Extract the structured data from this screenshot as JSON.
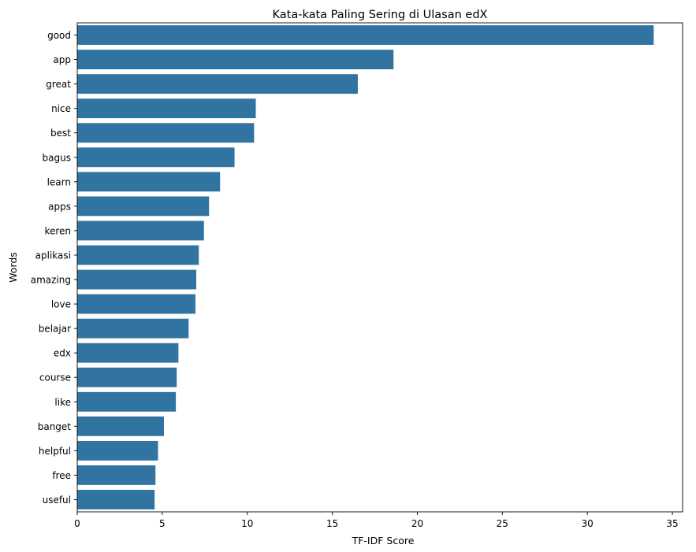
{
  "chart_data": {
    "type": "bar",
    "orientation": "horizontal",
    "title": "Kata-kata Paling Sering di Ulasan edX",
    "xlabel": "TF-IDF Score",
    "ylabel": "Words",
    "categories": [
      "good",
      "app",
      "great",
      "nice",
      "best",
      "bagus",
      "learn",
      "apps",
      "keren",
      "aplikasi",
      "amazing",
      "love",
      "belajar",
      "edx",
      "course",
      "like",
      "banget",
      "helpful",
      "free",
      "useful"
    ],
    "values": [
      33.9,
      18.6,
      16.5,
      10.5,
      10.4,
      9.25,
      8.4,
      7.75,
      7.45,
      7.15,
      7.0,
      6.95,
      6.55,
      5.95,
      5.85,
      5.8,
      5.1,
      4.75,
      4.6,
      4.55
    ],
    "xlim": [
      0,
      35.6
    ],
    "xticks": [
      0,
      5,
      10,
      15,
      20,
      25,
      30,
      35
    ],
    "grid": false,
    "legend": "none",
    "bar_color": "#3274a1"
  }
}
